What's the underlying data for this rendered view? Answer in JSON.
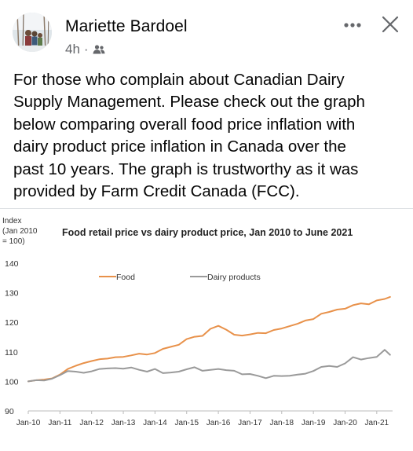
{
  "post": {
    "author": "Mariette Bardoel",
    "timestamp": "4h",
    "separator": "·",
    "audience_icon": "friends-icon",
    "more_icon": "more-options-icon",
    "close_icon": "close-icon",
    "text": "For those who complain about Canadian Dairy\nSupply Management.  Please check out the graph\nbelow comparing overall food price inflation with\ndairy product price inflation in Canada over the\npast 10 years. The graph is trustworthy as it was\nprovided by Farm Credit Canada (FCC)."
  },
  "colors": {
    "food": "#e8914a",
    "dairy": "#9a9a9a",
    "text_secondary": "#65676b",
    "axis_text": "#333333"
  },
  "chart_data": {
    "type": "line",
    "title": "Food retail price vs dairy product price, Jan 2010 to June 2021",
    "ylabel_lines": [
      "Index",
      "(Jan 2010",
      "= 100)"
    ],
    "xlabel": "",
    "ylim": [
      90,
      140
    ],
    "yticks": [
      "140",
      "130",
      "120",
      "110",
      "100",
      "90"
    ],
    "ytick_values": [
      140,
      130,
      120,
      110,
      100,
      90
    ],
    "xticks": [
      "Jan-10",
      "Jan-11",
      "Jan-12",
      "Jan-13",
      "Jan-14",
      "Jan-15",
      "Jan-16",
      "Jan-17",
      "Jan-18",
      "Jan-19",
      "Jan-20",
      "Jan-21"
    ],
    "xtick_values": [
      2010,
      2011,
      2012,
      2013,
      2014,
      2015,
      2016,
      2017,
      2018,
      2019,
      2020,
      2021
    ],
    "xlim": [
      2010,
      2021.5
    ],
    "grid": false,
    "legend_position": "top-left",
    "series": [
      {
        "name": "Food",
        "color_key": "food",
        "points": [
          [
            2010.0,
            100.0
          ],
          [
            2010.25,
            100.4
          ],
          [
            2010.5,
            100.6
          ],
          [
            2010.75,
            101.0
          ],
          [
            2011.0,
            102.3
          ],
          [
            2011.25,
            104.2
          ],
          [
            2011.5,
            105.3
          ],
          [
            2011.75,
            106.2
          ],
          [
            2012.0,
            106.9
          ],
          [
            2012.25,
            107.5
          ],
          [
            2012.5,
            107.7
          ],
          [
            2012.75,
            108.2
          ],
          [
            2013.0,
            108.3
          ],
          [
            2013.25,
            108.8
          ],
          [
            2013.5,
            109.4
          ],
          [
            2013.75,
            109.1
          ],
          [
            2014.0,
            109.6
          ],
          [
            2014.25,
            111.0
          ],
          [
            2014.5,
            111.7
          ],
          [
            2014.75,
            112.4
          ],
          [
            2015.0,
            114.3
          ],
          [
            2015.25,
            115.1
          ],
          [
            2015.5,
            115.4
          ],
          [
            2015.75,
            117.8
          ],
          [
            2016.0,
            118.8
          ],
          [
            2016.25,
            117.5
          ],
          [
            2016.5,
            115.8
          ],
          [
            2016.75,
            115.5
          ],
          [
            2017.0,
            115.9
          ],
          [
            2017.25,
            116.4
          ],
          [
            2017.5,
            116.3
          ],
          [
            2017.75,
            117.4
          ],
          [
            2018.0,
            117.9
          ],
          [
            2018.25,
            118.7
          ],
          [
            2018.5,
            119.5
          ],
          [
            2018.75,
            120.6
          ],
          [
            2019.0,
            121.1
          ],
          [
            2019.25,
            122.9
          ],
          [
            2019.5,
            123.5
          ],
          [
            2019.75,
            124.3
          ],
          [
            2020.0,
            124.6
          ],
          [
            2020.25,
            125.8
          ],
          [
            2020.5,
            126.4
          ],
          [
            2020.75,
            126.1
          ],
          [
            2021.0,
            127.4
          ],
          [
            2021.25,
            127.9
          ],
          [
            2021.42,
            128.6
          ]
        ]
      },
      {
        "name": "Dairy products",
        "color_key": "dairy",
        "points": [
          [
            2010.0,
            100.0
          ],
          [
            2010.25,
            100.4
          ],
          [
            2010.5,
            100.3
          ],
          [
            2010.75,
            100.9
          ],
          [
            2011.0,
            102.1
          ],
          [
            2011.25,
            103.5
          ],
          [
            2011.5,
            103.3
          ],
          [
            2011.75,
            102.9
          ],
          [
            2012.0,
            103.4
          ],
          [
            2012.25,
            104.2
          ],
          [
            2012.5,
            104.4
          ],
          [
            2012.75,
            104.5
          ],
          [
            2013.0,
            104.3
          ],
          [
            2013.25,
            104.7
          ],
          [
            2013.5,
            103.9
          ],
          [
            2013.75,
            103.3
          ],
          [
            2014.0,
            104.2
          ],
          [
            2014.25,
            102.8
          ],
          [
            2014.5,
            103.0
          ],
          [
            2014.75,
            103.3
          ],
          [
            2015.0,
            104.1
          ],
          [
            2015.25,
            104.8
          ],
          [
            2015.5,
            103.6
          ],
          [
            2015.75,
            103.9
          ],
          [
            2016.0,
            104.2
          ],
          [
            2016.25,
            103.8
          ],
          [
            2016.5,
            103.6
          ],
          [
            2016.75,
            102.4
          ],
          [
            2017.0,
            102.5
          ],
          [
            2017.25,
            101.9
          ],
          [
            2017.5,
            101.1
          ],
          [
            2017.75,
            101.9
          ],
          [
            2018.0,
            101.8
          ],
          [
            2018.25,
            101.9
          ],
          [
            2018.5,
            102.3
          ],
          [
            2018.75,
            102.6
          ],
          [
            2019.0,
            103.5
          ],
          [
            2019.25,
            104.9
          ],
          [
            2019.5,
            105.2
          ],
          [
            2019.75,
            104.9
          ],
          [
            2020.0,
            106.1
          ],
          [
            2020.25,
            108.2
          ],
          [
            2020.5,
            107.4
          ],
          [
            2020.75,
            107.9
          ],
          [
            2021.0,
            108.3
          ],
          [
            2021.25,
            110.7
          ],
          [
            2021.42,
            109.0
          ]
        ]
      }
    ]
  }
}
